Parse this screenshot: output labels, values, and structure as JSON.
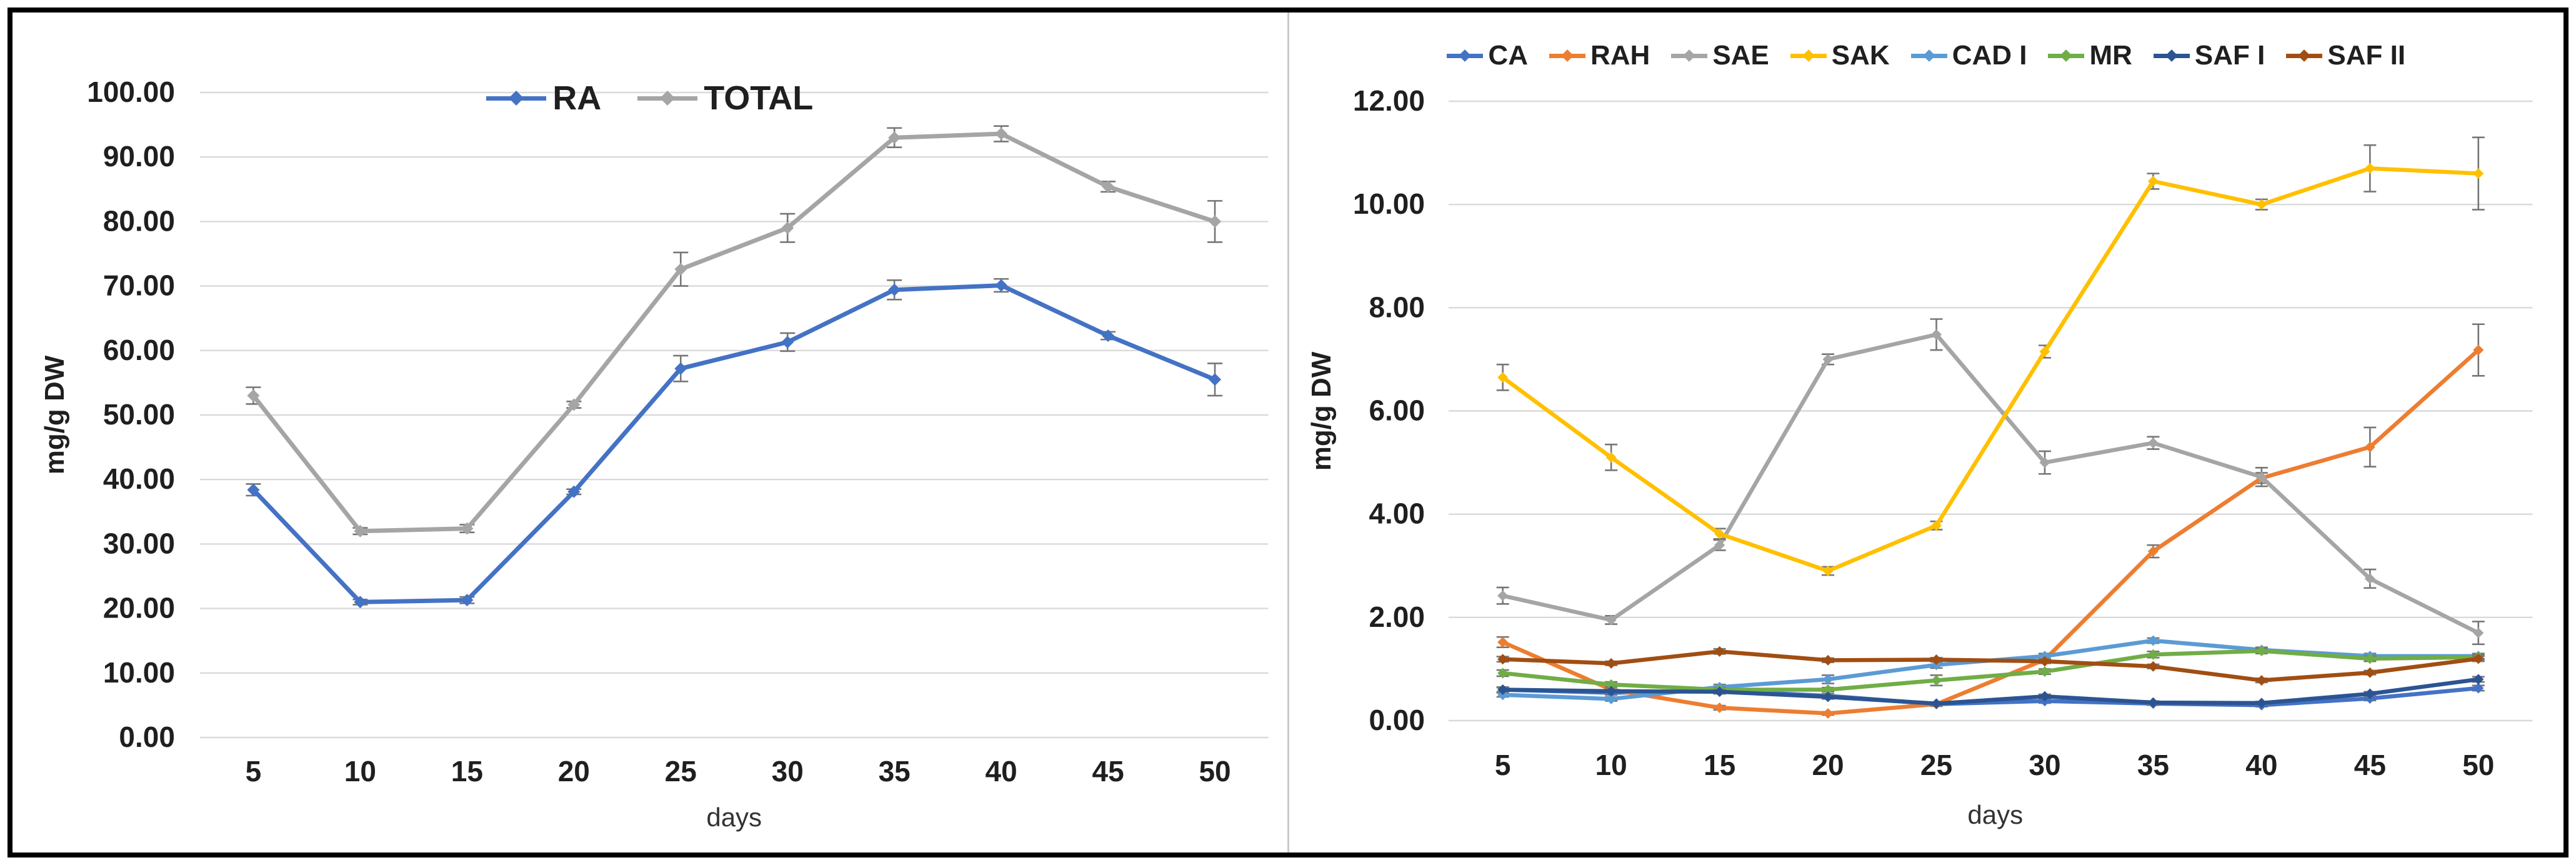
{
  "figure": {
    "background": "#FFFFFF",
    "border_color": "#000000",
    "divider_color": "#C9C9C9",
    "gridline_color": "#DADADA",
    "error_bar_color": "#767676",
    "text_color": "#1F1F1F",
    "xlabel_color": "#333333"
  },
  "chart_data": [
    {
      "type": "line",
      "panel": "left",
      "title": "",
      "xlabel": "days",
      "ylabel": "mg/g DW",
      "ylim": [
        0,
        100
      ],
      "ytick_step": 10,
      "ytick_labels": [
        "0.00",
        "10.00",
        "20.00",
        "30.00",
        "40.00",
        "50.00",
        "60.00",
        "70.00",
        "80.00",
        "90.00",
        "100.00"
      ],
      "x_categories": [
        "5",
        "10",
        "15",
        "20",
        "25",
        "30",
        "35",
        "40",
        "45",
        "50"
      ],
      "grid": true,
      "legend_position": "top",
      "series": [
        {
          "name": "RA",
          "color": "#4472C4",
          "values": [
            38.4,
            21.0,
            21.3,
            38.1,
            57.2,
            61.3,
            69.4,
            70.1,
            62.3,
            55.5
          ],
          "errors": [
            0.9,
            0.4,
            0.5,
            0.4,
            2.0,
            1.4,
            1.5,
            1.0,
            0.6,
            2.5
          ]
        },
        {
          "name": "TOTAL",
          "color": "#A5A5A5",
          "values": [
            53.0,
            32.0,
            32.4,
            51.6,
            72.6,
            79.0,
            93.0,
            93.6,
            85.4,
            80.0
          ],
          "errors": [
            1.3,
            0.5,
            0.6,
            0.5,
            2.6,
            2.2,
            1.5,
            1.2,
            0.8,
            3.2
          ]
        }
      ]
    },
    {
      "type": "line",
      "panel": "right",
      "title": "",
      "xlabel": "days",
      "ylabel": "mg/g DW",
      "ylim": [
        0,
        12
      ],
      "ytick_step": 2,
      "ytick_labels": [
        "0.00",
        "2.00",
        "4.00",
        "6.00",
        "8.00",
        "10.00",
        "12.00"
      ],
      "x_categories": [
        "5",
        "10",
        "15",
        "20",
        "25",
        "30",
        "35",
        "40",
        "45",
        "50"
      ],
      "grid": true,
      "legend_position": "top",
      "series": [
        {
          "name": "CA",
          "color": "#4472C4",
          "values": [
            0.6,
            0.54,
            0.58,
            0.48,
            0.32,
            0.38,
            0.33,
            0.3,
            0.43,
            0.63
          ],
          "errors": [
            0.05,
            0.04,
            0.04,
            0.04,
            0.04,
            0.04,
            0.03,
            0.03,
            0.04,
            0.05
          ]
        },
        {
          "name": "RAH",
          "color": "#ED7D31",
          "values": [
            1.52,
            0.6,
            0.25,
            0.14,
            0.32,
            1.18,
            3.28,
            4.7,
            5.3,
            7.18
          ],
          "errors": [
            0.1,
            0.05,
            0.04,
            0.03,
            0.04,
            0.06,
            0.12,
            0.1,
            0.38,
            0.5
          ]
        },
        {
          "name": "SAE",
          "color": "#A5A5A5",
          "values": [
            2.42,
            1.95,
            3.4,
            7.0,
            7.48,
            5.0,
            5.38,
            4.72,
            2.75,
            1.7
          ],
          "errors": [
            0.16,
            0.08,
            0.1,
            0.1,
            0.3,
            0.22,
            0.12,
            0.18,
            0.18,
            0.22
          ]
        },
        {
          "name": "SAK",
          "color": "#FFC000",
          "values": [
            6.65,
            5.1,
            3.62,
            2.9,
            3.78,
            7.15,
            10.45,
            10.0,
            10.7,
            10.6
          ],
          "errors": [
            0.25,
            0.25,
            0.1,
            0.08,
            0.08,
            0.12,
            0.15,
            0.1,
            0.45,
            0.7
          ]
        },
        {
          "name": "CAD I",
          "color": "#5B9BD5",
          "values": [
            0.5,
            0.42,
            0.65,
            0.8,
            1.08,
            1.25,
            1.55,
            1.37,
            1.25,
            1.25
          ],
          "errors": [
            0.04,
            0.04,
            0.05,
            0.08,
            0.06,
            0.05,
            0.05,
            0.05,
            0.05,
            0.05
          ]
        },
        {
          "name": "MR",
          "color": "#70AD47",
          "values": [
            0.92,
            0.7,
            0.6,
            0.6,
            0.78,
            0.95,
            1.28,
            1.35,
            1.2,
            1.23
          ],
          "errors": [
            0.06,
            0.05,
            0.04,
            0.04,
            0.1,
            0.05,
            0.06,
            0.05,
            0.05,
            0.05
          ]
        },
        {
          "name": "SAF I",
          "color": "#2B5493",
          "values": [
            0.6,
            0.57,
            0.56,
            0.46,
            0.33,
            0.47,
            0.35,
            0.34,
            0.52,
            0.8
          ],
          "errors": [
            0.04,
            0.04,
            0.04,
            0.04,
            0.03,
            0.04,
            0.03,
            0.03,
            0.04,
            0.05
          ]
        },
        {
          "name": "SAF II",
          "color": "#A14E12",
          "values": [
            1.19,
            1.11,
            1.34,
            1.17,
            1.18,
            1.15,
            1.05,
            0.78,
            0.93,
            1.2
          ],
          "errors": [
            0.05,
            0.04,
            0.05,
            0.04,
            0.04,
            0.04,
            0.04,
            0.04,
            0.04,
            0.05
          ]
        }
      ]
    }
  ]
}
